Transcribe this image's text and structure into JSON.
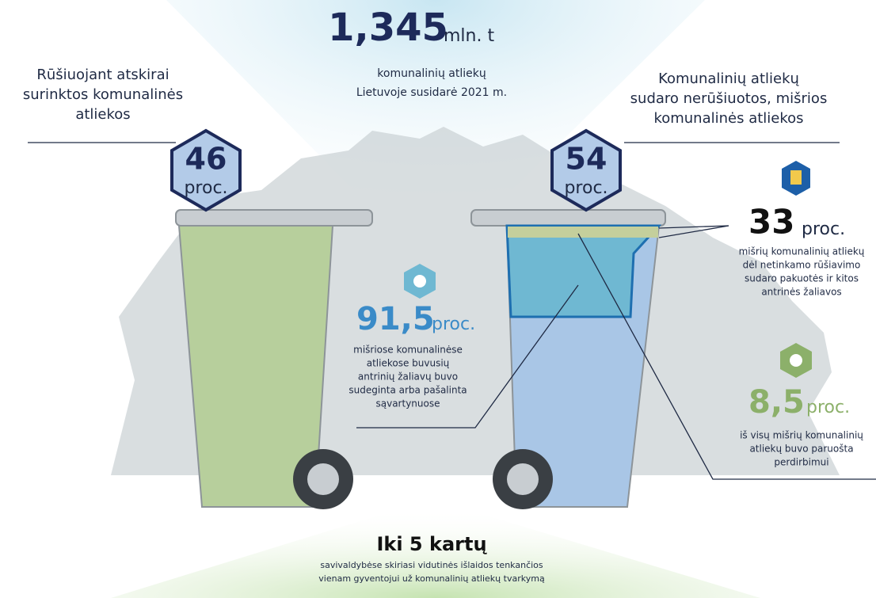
{
  "headline": {
    "value": "1,345",
    "unit": "mln. t",
    "lines": [
      "komunalinių atliekų",
      "Lietuvoje susidarė 2021 m."
    ]
  },
  "left": {
    "lines": [
      "Rūšiuojant atskirai",
      "surinktos komunalinės",
      "atliekos"
    ],
    "value": "46",
    "unit": "proc."
  },
  "right": {
    "lines": [
      "Komunalinių atliekų",
      "sudaro nerūšiuotos, mišrios",
      "komunalinės atliekos"
    ],
    "value": "54",
    "unit": "proc."
  },
  "stat_packaging": {
    "value": "33",
    "unit": "proc.",
    "lines": [
      "mišrių komunalinių atliekų",
      "dėl netinkamo rūšiavimo",
      "sudaro pakuotės ir kitos",
      "antrinės žaliavos"
    ]
  },
  "stat_landfill": {
    "value": "91,5",
    "unit": "proc.",
    "lines": [
      "mišriose komunalinėse",
      "atliekose buvusių",
      "antrinių žaliavų  buvo",
      "sudeginta arba pašalinta",
      "sąvartynuose"
    ]
  },
  "stat_recycled": {
    "value": "8,5",
    "unit": "proc.",
    "lines": [
      "iš visų mišrių komunalinių",
      "atliekų buvo paruošta",
      "perdirbimui"
    ]
  },
  "bottom": {
    "title": "Iki 5 kartų",
    "lines": [
      "savivaldybėse skiriasi vidutinės išlaidos tenkančios",
      "vienam gyventojui už komunalinių atliekų tvarkymą"
    ]
  }
}
